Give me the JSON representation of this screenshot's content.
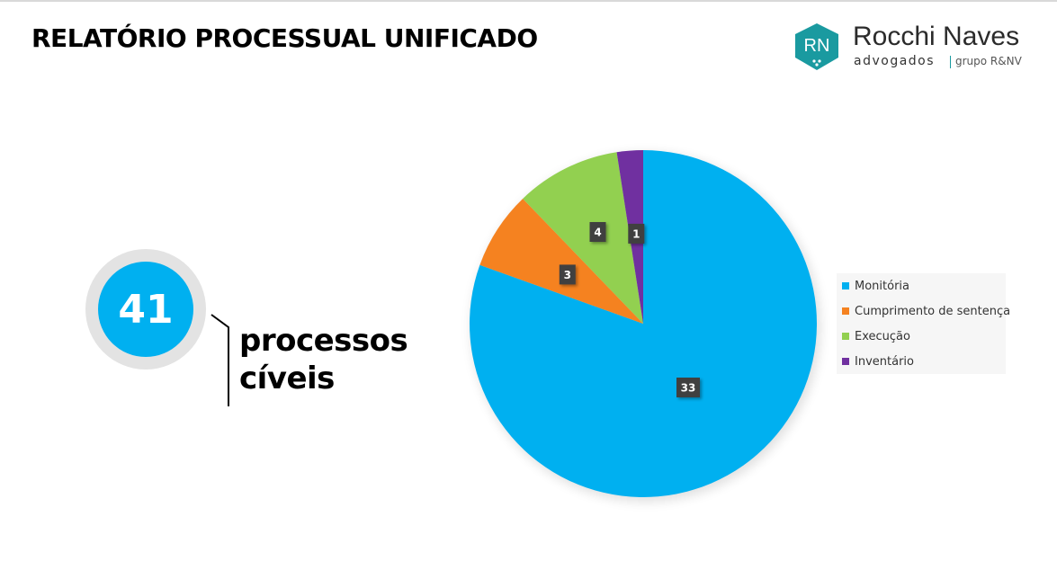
{
  "header": {
    "title": "RELATÓRIO PROCESSUAL UNIFICADO"
  },
  "logo": {
    "monogram": "RN",
    "name": "Rocchi Naves",
    "sub": "advogados",
    "group": "grupo R&NV",
    "color": "#1a9aa0"
  },
  "kpi": {
    "value": "41",
    "label_line1": "processos",
    "label_line2": "cíveis",
    "color": "#00b0f0"
  },
  "chart_data": {
    "type": "pie",
    "title": "",
    "start_angle": "12 o'clock, clockwise",
    "legend_position": "right",
    "slices": [
      {
        "name": "Monitória",
        "value": 33,
        "label": "33",
        "color": "#00b0f0"
      },
      {
        "name": "Cumprimento de sentença",
        "value": 3,
        "label": "3",
        "color": "#f58220"
      },
      {
        "name": "Execução",
        "value": 4,
        "label": "4",
        "color": "#92d050"
      },
      {
        "name": "Inventário",
        "value": 1,
        "label": "1",
        "color": "#7030a0"
      }
    ]
  }
}
